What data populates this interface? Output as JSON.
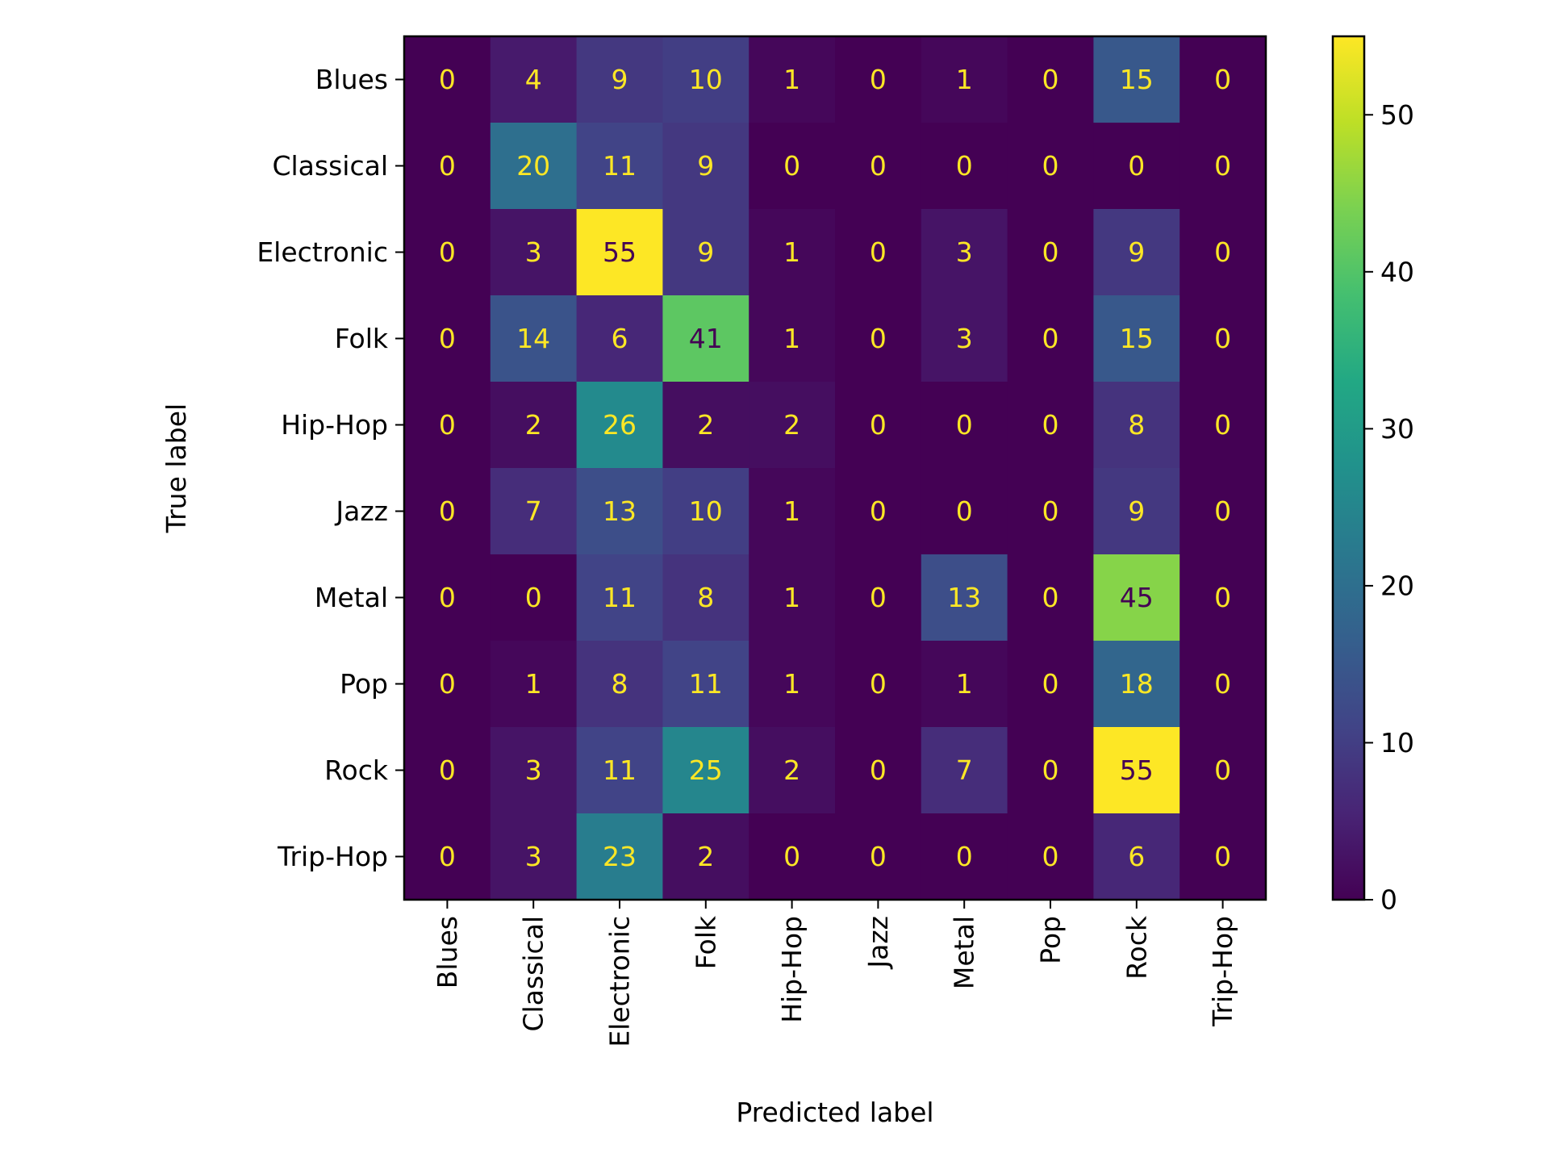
{
  "chart_data": {
    "type": "heatmap",
    "title": "",
    "xlabel": "Predicted label",
    "ylabel": "True label",
    "x_categories": [
      "Blues",
      "Classical",
      "Electronic",
      "Folk",
      "Hip-Hop",
      "Jazz",
      "Metal",
      "Pop",
      "Rock",
      "Trip-Hop"
    ],
    "y_categories": [
      "Blues",
      "Classical",
      "Electronic",
      "Folk",
      "Hip-Hop",
      "Jazz",
      "Metal",
      "Pop",
      "Rock",
      "Trip-Hop"
    ],
    "values": [
      [
        0,
        4,
        9,
        10,
        1,
        0,
        1,
        0,
        15,
        0
      ],
      [
        0,
        20,
        11,
        9,
        0,
        0,
        0,
        0,
        0,
        0
      ],
      [
        0,
        3,
        55,
        9,
        1,
        0,
        3,
        0,
        9,
        0
      ],
      [
        0,
        14,
        6,
        41,
        1,
        0,
        3,
        0,
        15,
        0
      ],
      [
        0,
        2,
        26,
        2,
        2,
        0,
        0,
        0,
        8,
        0
      ],
      [
        0,
        7,
        13,
        10,
        1,
        0,
        0,
        0,
        9,
        0
      ],
      [
        0,
        0,
        11,
        8,
        1,
        0,
        13,
        0,
        45,
        0
      ],
      [
        0,
        1,
        8,
        11,
        1,
        0,
        1,
        0,
        18,
        0
      ],
      [
        0,
        3,
        11,
        25,
        2,
        0,
        7,
        0,
        55,
        0
      ],
      [
        0,
        3,
        23,
        2,
        0,
        0,
        0,
        0,
        6,
        0
      ]
    ],
    "colormap": "viridis",
    "colorbar": {
      "range": [
        0,
        55
      ],
      "ticks": [
        0,
        10,
        20,
        30,
        40,
        50
      ],
      "tick_labels": [
        "0",
        "10",
        "20",
        "30",
        "40",
        "50"
      ]
    },
    "annotation_colors": {
      "light_text": "#fde725",
      "dark_text": "#440154"
    },
    "grid": false,
    "legend": "none"
  }
}
